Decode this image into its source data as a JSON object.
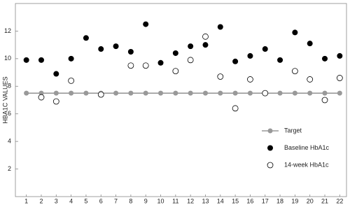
{
  "chart_data": {
    "type": "scatter",
    "y_label": "HBA1C VALUES",
    "categories": [
      "1",
      "2",
      "3",
      "4",
      "5",
      "6",
      "7",
      "8",
      "9",
      "10",
      "11",
      "12",
      "13",
      "14",
      "15",
      "16",
      "17",
      "18",
      "19",
      "20",
      "21",
      "22"
    ],
    "ylim": [
      0,
      14
    ],
    "yticks": [
      2,
      4,
      6,
      8,
      10,
      12
    ],
    "legend": "lower right",
    "series": [
      {
        "name": "Target",
        "color": "#999999",
        "style": "line",
        "values": [
          7.5,
          7.5,
          7.5,
          7.5,
          7.5,
          7.5,
          7.5,
          7.5,
          7.5,
          7.5,
          7.5,
          7.5,
          7.5,
          7.5,
          7.5,
          7.5,
          7.5,
          7.5,
          7.5,
          7.5,
          7.5,
          7.5
        ]
      },
      {
        "name": "Baseline HbA1c",
        "color": "#000000",
        "style": "filled",
        "values": [
          9.9,
          9.9,
          8.9,
          10.0,
          11.5,
          10.7,
          10.9,
          10.5,
          12.5,
          9.7,
          10.4,
          10.9,
          11.0,
          12.3,
          9.8,
          10.2,
          10.7,
          9.9,
          11.9,
          11.1,
          10.0,
          10.2
        ]
      },
      {
        "name": "14-week HbA1c",
        "color": "#000000",
        "style": "open",
        "values": [
          null,
          7.2,
          6.9,
          8.4,
          null,
          7.4,
          null,
          9.5,
          9.5,
          null,
          9.1,
          9.9,
          11.6,
          8.7,
          6.4,
          8.5,
          7.5,
          null,
          9.1,
          8.5,
          7.0,
          8.6
        ]
      }
    ]
  }
}
